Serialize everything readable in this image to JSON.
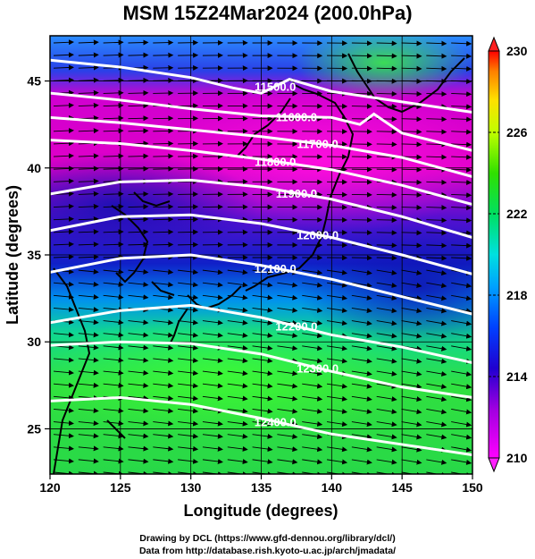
{
  "title": "MSM 15Z24Mar2024 (200.0hPa)",
  "map": {
    "xlabel": "Longitude (degrees)",
    "ylabel": "Latitude  (degrees)",
    "x_ticks": [
      "120",
      "125",
      "130",
      "135",
      "140",
      "145",
      "150"
    ],
    "y_ticks": [
      "25",
      "30",
      "35",
      "40",
      "45"
    ],
    "lon_range": [
      120,
      150
    ],
    "lat_range": [
      22.4,
      47.6
    ],
    "grid": true,
    "arrow_rows": 35,
    "arrow_cols": 17
  },
  "contours": [
    {
      "label": "11500.0",
      "points": [
        [
          120,
          46.2
        ],
        [
          125,
          45.8
        ],
        [
          130,
          45.2
        ],
        [
          133,
          44.6
        ],
        [
          135,
          44.3
        ],
        [
          137,
          45.1
        ],
        [
          140,
          44.4
        ],
        [
          145,
          43.8
        ],
        [
          150,
          43.2
        ]
      ]
    },
    {
      "label": "11600.0",
      "points": [
        [
          120,
          44.3
        ],
        [
          125,
          43.9
        ],
        [
          130,
          43.4
        ],
        [
          135,
          43.0
        ],
        [
          140,
          42.9
        ],
        [
          142,
          42.5
        ],
        [
          143,
          43.1
        ],
        [
          145,
          42.0
        ],
        [
          150,
          41.0
        ]
      ]
    },
    {
      "label": "11700.0",
      "points": [
        [
          120,
          42.9
        ],
        [
          125,
          42.6
        ],
        [
          130,
          42.2
        ],
        [
          135,
          41.8
        ],
        [
          140,
          41.3
        ],
        [
          145,
          40.6
        ],
        [
          150,
          39.5
        ]
      ]
    },
    {
      "label": "11800.0",
      "points": [
        [
          120,
          41.6
        ],
        [
          125,
          41.4
        ],
        [
          130,
          41.0
        ],
        [
          135,
          40.5
        ],
        [
          140,
          39.9
        ],
        [
          145,
          39.0
        ],
        [
          150,
          37.9
        ]
      ]
    },
    {
      "label": "11900.0",
      "points": [
        [
          120,
          38.5
        ],
        [
          125,
          39.2
        ],
        [
          130,
          39.3
        ],
        [
          135,
          38.9
        ],
        [
          140,
          38.2
        ],
        [
          145,
          37.2
        ],
        [
          150,
          36.0
        ]
      ]
    },
    {
      "label": "12000.0",
      "points": [
        [
          120,
          36.4
        ],
        [
          125,
          37.2
        ],
        [
          130,
          37.3
        ],
        [
          135,
          36.8
        ],
        [
          140,
          36.0
        ],
        [
          145,
          35.0
        ],
        [
          150,
          33.9
        ]
      ]
    },
    {
      "label": "12100.0",
      "points": [
        [
          120,
          34.0
        ],
        [
          125,
          34.8
        ],
        [
          130,
          35.0
        ],
        [
          135,
          34.4
        ],
        [
          140,
          33.6
        ],
        [
          145,
          32.6
        ],
        [
          150,
          31.6
        ]
      ]
    },
    {
      "label": "12200.0",
      "points": [
        [
          120,
          31.1
        ],
        [
          125,
          31.8
        ],
        [
          130,
          32.1
        ],
        [
          135,
          31.4
        ],
        [
          140,
          30.4
        ],
        [
          145,
          29.7
        ],
        [
          150,
          28.8
        ]
      ]
    },
    {
      "label": "12300.0",
      "points": [
        [
          120,
          29.8
        ],
        [
          125,
          30.0
        ],
        [
          130,
          29.9
        ],
        [
          135,
          29.3
        ],
        [
          140,
          28.3
        ],
        [
          145,
          27.4
        ],
        [
          150,
          26.8
        ]
      ]
    },
    {
      "label": "12400.0",
      "points": [
        [
          120,
          26.6
        ],
        [
          125,
          26.8
        ],
        [
          130,
          26.4
        ],
        [
          135,
          25.6
        ],
        [
          140,
          24.7
        ],
        [
          145,
          24.1
        ],
        [
          150,
          23.5
        ]
      ]
    }
  ],
  "colorbar": {
    "ticks": [
      "230",
      "226",
      "222",
      "218",
      "214",
      "210"
    ],
    "range": [
      210,
      230
    ]
  },
  "credits": {
    "drawing": "Drawing by DCL (https://www.gfd-dennou.org/library/dcl/)",
    "data": "Data from http://database.rish.kyoto-u.ac.jp/arch/jmadata/"
  }
}
